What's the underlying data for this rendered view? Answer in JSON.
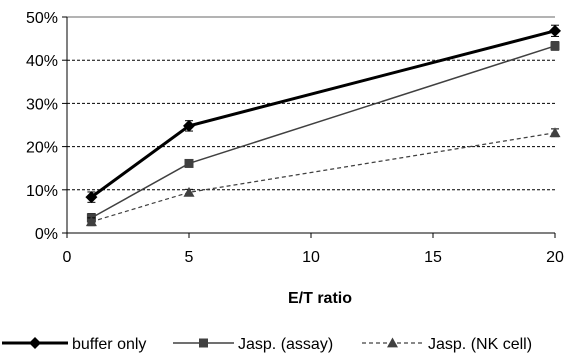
{
  "chart_data": {
    "type": "line",
    "title": "",
    "xlabel": "E/T ratio",
    "ylabel": "",
    "xlim": [
      0,
      20
    ],
    "ylim": [
      0,
      50
    ],
    "x_ticks": [
      "0",
      "5",
      "10",
      "15",
      "20"
    ],
    "y_ticks": [
      "0%",
      "10%",
      "20%",
      "30%",
      "40%",
      "50%"
    ],
    "grid": "horizontal dashed",
    "legend_position": "bottom",
    "x": [
      1,
      5,
      20
    ],
    "series": [
      {
        "name": "buffer only",
        "values": [
          8.3,
          24.8,
          46.8
        ],
        "errors": [
          1.2,
          1.2,
          1.3
        ],
        "marker": "diamond",
        "color": "#000000",
        "line": "solid-thick"
      },
      {
        "name": "Jasp. (assay)",
        "values": [
          3.5,
          16.1,
          43.3
        ],
        "errors": [
          1.0,
          0.8,
          1.0
        ],
        "marker": "square",
        "color": "#404040",
        "line": "solid"
      },
      {
        "name": "Jasp. (NK cell)",
        "values": [
          2.6,
          9.4,
          23.2
        ],
        "errors": [
          0.9,
          0.7,
          0.9
        ],
        "marker": "triangle",
        "color": "#404040",
        "line": "dashed"
      }
    ]
  }
}
